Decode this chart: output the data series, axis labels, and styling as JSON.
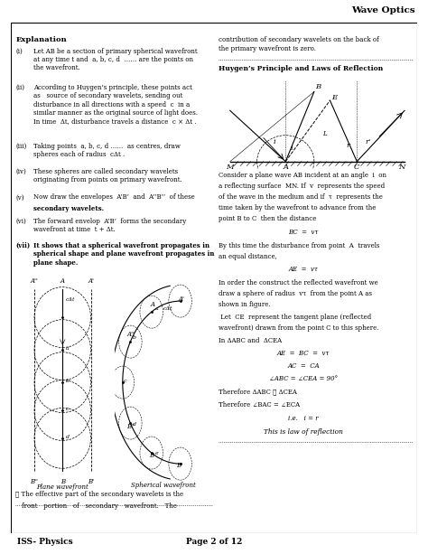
{
  "title": "Wave Optics",
  "page_label": "ISS- Physics",
  "page_number": "Page 2 of 12",
  "bg": "#ffffff",
  "left_col_text": [
    [
      "(i)",
      "Let AB be a section of primary spherical wavefront\nat any time t and a, b, c, d …… are the points on\nthe wavefront."
    ],
    [
      "(ii)",
      "According to Huygen’s principle, these points act\nas  source of secondary wavelets, sending out\ndisturbance in all directions with a speed c in a\nsimilar manner as the original source of light does.\nIn time Δt, disturbance travels a distance  c × Δt ."
    ],
    [
      "(iii)",
      "Taking points  a, b, c, d …… as centres, draw\nspheres each of radius cΔt ."
    ],
    [
      "(iv)",
      "These spheres are called secondary wavelets\noriginating from points on primary wavefront."
    ],
    [
      "(v)",
      "Now draw the envelopes A’B’ and A’’B’’ of these"
    ],
    [
      "",
      "secondary wavelets."
    ],
    [
      "(vi)",
      "The forward envelop  A’B’  forms the secondary\nwavefront at time  t + Δt."
    ],
    [
      "(vii)",
      "It shows that a spherical wavefront propagates in\nspherical shape and plane wavefront propagates in\nplane shape."
    ]
  ],
  "right_col_contrib": "contribution of secondary wavelets on the back of\nthe primary wavefront is zero.",
  "huygens_title": "Huygen’s Principle and Laws of Reflection",
  "right_col_text": [
    "Consider a plane wave AB incident at an angle  i  on",
    "a reflecting surface  MN. If  v  represents the speed",
    "of the wave in the medium and if  τ  represents the",
    "time taken by the wavefront to advance from the",
    "point B to C  then the distance"
  ],
  "eq1": "BC  =  vτ",
  "text2": [
    "By this time the disturbance from point  A  travels",
    "an equal distance,"
  ],
  "eq2": "AE  =  vτ",
  "text3": [
    "In order the construct the reflected wavefront we",
    "draw a sphere of radius  vτ  from the point A as",
    "shown in figure."
  ],
  "text4": [
    " Let  CE  represent the tangent plane (reflected",
    "wavefront) drawn from the point C to this sphere."
  ],
  "eq3": "In ΔABC and ΔCEA",
  "eq4": "AE  =  BC  =  vτ",
  "eq5": "AC  =  CA",
  "eq6": "∠ABC = ∠CEA = 90°",
  "eq7": "Therefore ΔABC ≅ ΔCEA",
  "eq8": "Therefore ∠BAC = ∠ECA",
  "eq9": "i.e.   i = r",
  "eq10": "This is law of reflection",
  "bullet": "❖ The effective part of the secondary wavelets is the",
  "bullet2": "  front  portion  of  secondary  wavefront.  The"
}
